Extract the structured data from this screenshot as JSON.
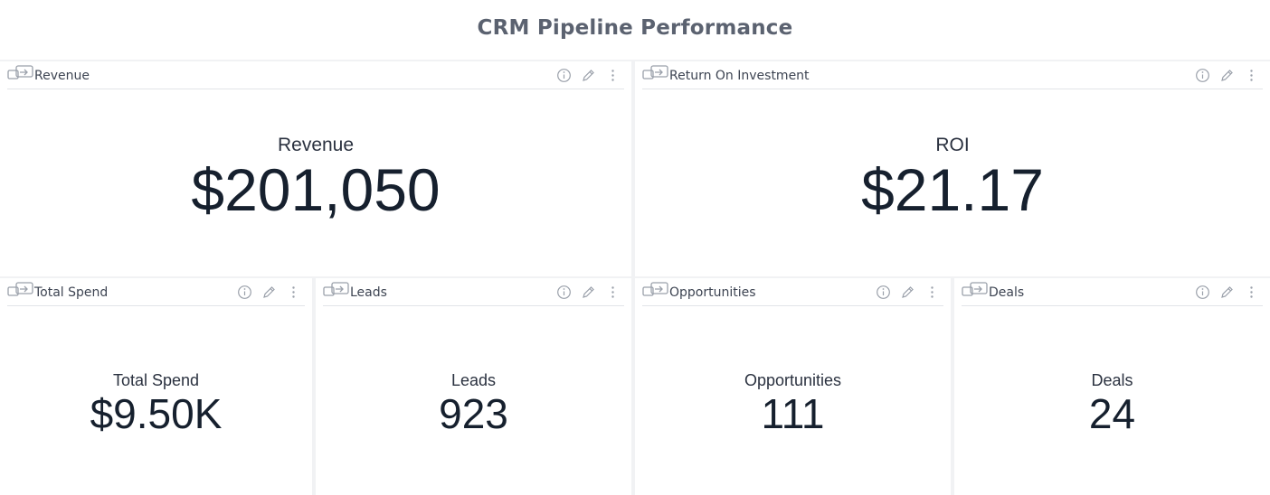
{
  "dashboard": {
    "title": "CRM Pipeline Performance"
  },
  "tiles": [
    {
      "header": "Revenue",
      "label": "Revenue",
      "value": "$201,050"
    },
    {
      "header": "Return On Investment",
      "label": "ROI",
      "value": "$21.17"
    },
    {
      "header": "Total Spend",
      "label": "Total Spend",
      "value": "$9.50K"
    },
    {
      "header": "Leads",
      "label": "Leads",
      "value": "923"
    },
    {
      "header": "Opportunities",
      "label": "Opportunities",
      "value": "111"
    },
    {
      "header": "Deals",
      "label": "Deals",
      "value": "24"
    }
  ],
  "icons": {
    "link": "link-icon",
    "info": "info-icon",
    "edit": "pencil-icon",
    "menu": "kebab-menu-icon"
  },
  "colors": {
    "title": "#5b6270",
    "value": "#16202e",
    "icon": "#9aa0aa",
    "background": "#f1f2f4"
  }
}
